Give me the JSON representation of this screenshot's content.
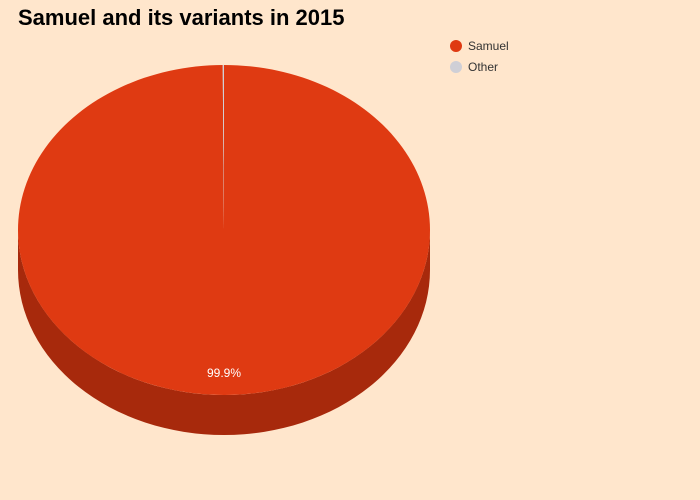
{
  "chart_data": {
    "type": "pie",
    "title": "Samuel and its variants in 2015",
    "categories": [
      "Samuel",
      "Other"
    ],
    "values": [
      99.9,
      0.1
    ],
    "data_labels": [
      "99.9%",
      ""
    ],
    "colors": [
      "#df3a12",
      "#cfcfd6"
    ],
    "side_colors": [
      "#a7290c",
      "#9a9aa2"
    ],
    "legend_position": "top-right",
    "style": "3d"
  }
}
